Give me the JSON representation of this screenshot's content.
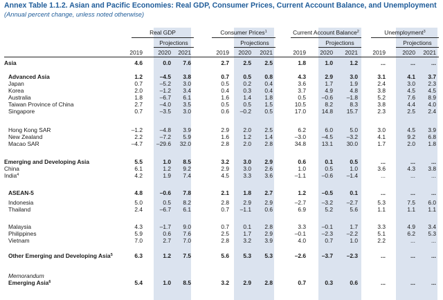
{
  "title": "Annex Table 1.1.2. Asian and Pacific Economies: Real GDP, Consumer Prices, Current Account Balance, and Unemployment",
  "subtitle": "(Annual percent change, unless noted otherwise)",
  "groups": [
    {
      "label": "Real GDP",
      "note": ""
    },
    {
      "label": "Consumer Prices",
      "note": "1"
    },
    {
      "label": "Current Account Balance",
      "note": "2"
    },
    {
      "label": "Unemployment",
      "note": "3"
    }
  ],
  "projections_label": "Projections",
  "years": [
    "2019",
    "2020",
    "2021"
  ],
  "not_available": "...",
  "rows": [
    {
      "label": "Asia",
      "note": "",
      "bold": true,
      "indent": 0,
      "v": [
        "4.6",
        "0.0",
        "7.6",
        "2.7",
        "2.5",
        "2.5",
        "1.8",
        "1.0",
        "1.2",
        "...",
        "...",
        "..."
      ]
    },
    {
      "label": "Advanced Asia",
      "note": "",
      "bold": true,
      "indent": 1,
      "v": [
        "1.2",
        "–4.5",
        "3.8",
        "0.7",
        "0.5",
        "0.8",
        "4.3",
        "2.9",
        "3.0",
        "3.1",
        "4.1",
        "3.7"
      ]
    },
    {
      "label": "Japan",
      "note": "",
      "bold": false,
      "indent": 1,
      "v": [
        "0.7",
        "–5.2",
        "3.0",
        "0.5",
        "0.2",
        "0.4",
        "3.6",
        "1.7",
        "1.9",
        "2.4",
        "3.0",
        "2.3"
      ]
    },
    {
      "label": "Korea",
      "note": "",
      "bold": false,
      "indent": 1,
      "v": [
        "2.0",
        "–1.2",
        "3.4",
        "0.4",
        "0.3",
        "0.4",
        "3.7",
        "4.9",
        "4.8",
        "3.8",
        "4.5",
        "4.5"
      ]
    },
    {
      "label": "Australia",
      "note": "",
      "bold": false,
      "indent": 1,
      "v": [
        "1.8",
        "–6.7",
        "6.1",
        "1.6",
        "1.4",
        "1.8",
        "0.5",
        "–0.6",
        "–1.8",
        "5.2",
        "7.6",
        "8.9"
      ]
    },
    {
      "label": "Taiwan Province of China",
      "note": "",
      "bold": false,
      "indent": 1,
      "v": [
        "2.7",
        "–4.0",
        "3.5",
        "0.5",
        "0.5",
        "1.5",
        "10.5",
        "8.2",
        "8.3",
        "3.8",
        "4.4",
        "4.0"
      ]
    },
    {
      "label": "Singapore",
      "note": "",
      "bold": false,
      "indent": 1,
      "v": [
        "0.7",
        "–3.5",
        "3.0",
        "0.6",
        "–0.2",
        "0.5",
        "17.0",
        "14.8",
        "15.7",
        "2.3",
        "2.5",
        "2.4"
      ]
    },
    {
      "label": "Hong Kong SAR",
      "note": "",
      "bold": false,
      "indent": 1,
      "v": [
        "–1.2",
        "–4.8",
        "3.9",
        "2.9",
        "2.0",
        "2.5",
        "6.2",
        "6.0",
        "5.0",
        "3.0",
        "4.5",
        "3.9"
      ]
    },
    {
      "label": "New Zealand",
      "note": "",
      "bold": false,
      "indent": 1,
      "v": [
        "2.2",
        "–7.2",
        "5.9",
        "1.6",
        "1.2",
        "1.4",
        "–3.0",
        "–4.5",
        "–3.2",
        "4.1",
        "9.2",
        "6.8"
      ]
    },
    {
      "label": "Macao SAR",
      "note": "",
      "bold": false,
      "indent": 1,
      "v": [
        "–4.7",
        "–29.6",
        "32.0",
        "2.8",
        "2.0",
        "2.8",
        "34.8",
        "13.1",
        "30.0",
        "1.7",
        "2.0",
        "1.8"
      ]
    },
    {
      "label": "Emerging and Developing Asia",
      "note": "",
      "bold": true,
      "indent": 0,
      "v": [
        "5.5",
        "1.0",
        "8.5",
        "3.2",
        "3.0",
        "2.9",
        "0.6",
        "0.1",
        "0.5",
        "...",
        "...",
        "..."
      ]
    },
    {
      "label": "China",
      "note": "",
      "bold": false,
      "indent": 0,
      "v": [
        "6.1",
        "1.2",
        "9.2",
        "2.9",
        "3.0",
        "2.6",
        "1.0",
        "0.5",
        "1.0",
        "3.6",
        "4.3",
        "3.8"
      ]
    },
    {
      "label": "India",
      "note": "4",
      "bold": false,
      "indent": 0,
      "v": [
        "4.2",
        "1.9",
        "7.4",
        "4.5",
        "3.3",
        "3.6",
        "–1.1",
        "–0.6",
        "–1.4",
        "...",
        "...",
        "..."
      ]
    },
    {
      "label": "ASEAN-5",
      "note": "",
      "bold": true,
      "indent": 1,
      "v": [
        "4.8",
        "–0.6",
        "7.8",
        "2.1",
        "1.8",
        "2.7",
        "1.2",
        "–0.5",
        "0.1",
        "...",
        "...",
        "..."
      ]
    },
    {
      "label": "Indonesia",
      "note": "",
      "bold": false,
      "indent": 1,
      "v": [
        "5.0",
        "0.5",
        "8.2",
        "2.8",
        "2.9",
        "2.9",
        "–2.7",
        "–3.2",
        "–2.7",
        "5.3",
        "7.5",
        "6.0"
      ]
    },
    {
      "label": "Thailand",
      "note": "",
      "bold": false,
      "indent": 1,
      "v": [
        "2.4",
        "–6.7",
        "6.1",
        "0.7",
        "–1.1",
        "0.6",
        "6.9",
        "5.2",
        "5.6",
        "1.1",
        "1.1",
        "1.1"
      ]
    },
    {
      "label": "Malaysia",
      "note": "",
      "bold": false,
      "indent": 1,
      "v": [
        "4.3",
        "–1.7",
        "9.0",
        "0.7",
        "0.1",
        "2.8",
        "3.3",
        "–0.1",
        "1.7",
        "3.3",
        "4.9",
        "3.4"
      ]
    },
    {
      "label": "Philippines",
      "note": "",
      "bold": false,
      "indent": 1,
      "v": [
        "5.9",
        "0.6",
        "7.6",
        "2.5",
        "1.7",
        "2.9",
        "–0.1",
        "–2.3",
        "–2.2",
        "5.1",
        "6.2",
        "5.3"
      ]
    },
    {
      "label": "Vietnam",
      "note": "",
      "bold": false,
      "indent": 1,
      "v": [
        "7.0",
        "2.7",
        "7.0",
        "2.8",
        "3.2",
        "3.9",
        "4.0",
        "0.7",
        "1.0",
        "2.2",
        "...",
        "..."
      ]
    },
    {
      "label": "Other Emerging and Developing Asia",
      "note": "5",
      "bold": true,
      "indent": 1,
      "v": [
        "6.3",
        "1.2",
        "7.5",
        "5.6",
        "5.3",
        "5.3",
        "–2.6",
        "–3.7",
        "–2.3",
        "...",
        "...",
        "..."
      ]
    },
    {
      "label": "Memorandum",
      "note": "",
      "bold": false,
      "italic": true,
      "indent": 1,
      "v": []
    },
    {
      "label": "Emerging Asia",
      "note": "6",
      "bold": true,
      "indent": 1,
      "v": [
        "5.4",
        "1.0",
        "8.5",
        "3.2",
        "2.9",
        "2.8",
        "0.7",
        "0.3",
        "0.6",
        "...",
        "...",
        "..."
      ]
    }
  ]
}
